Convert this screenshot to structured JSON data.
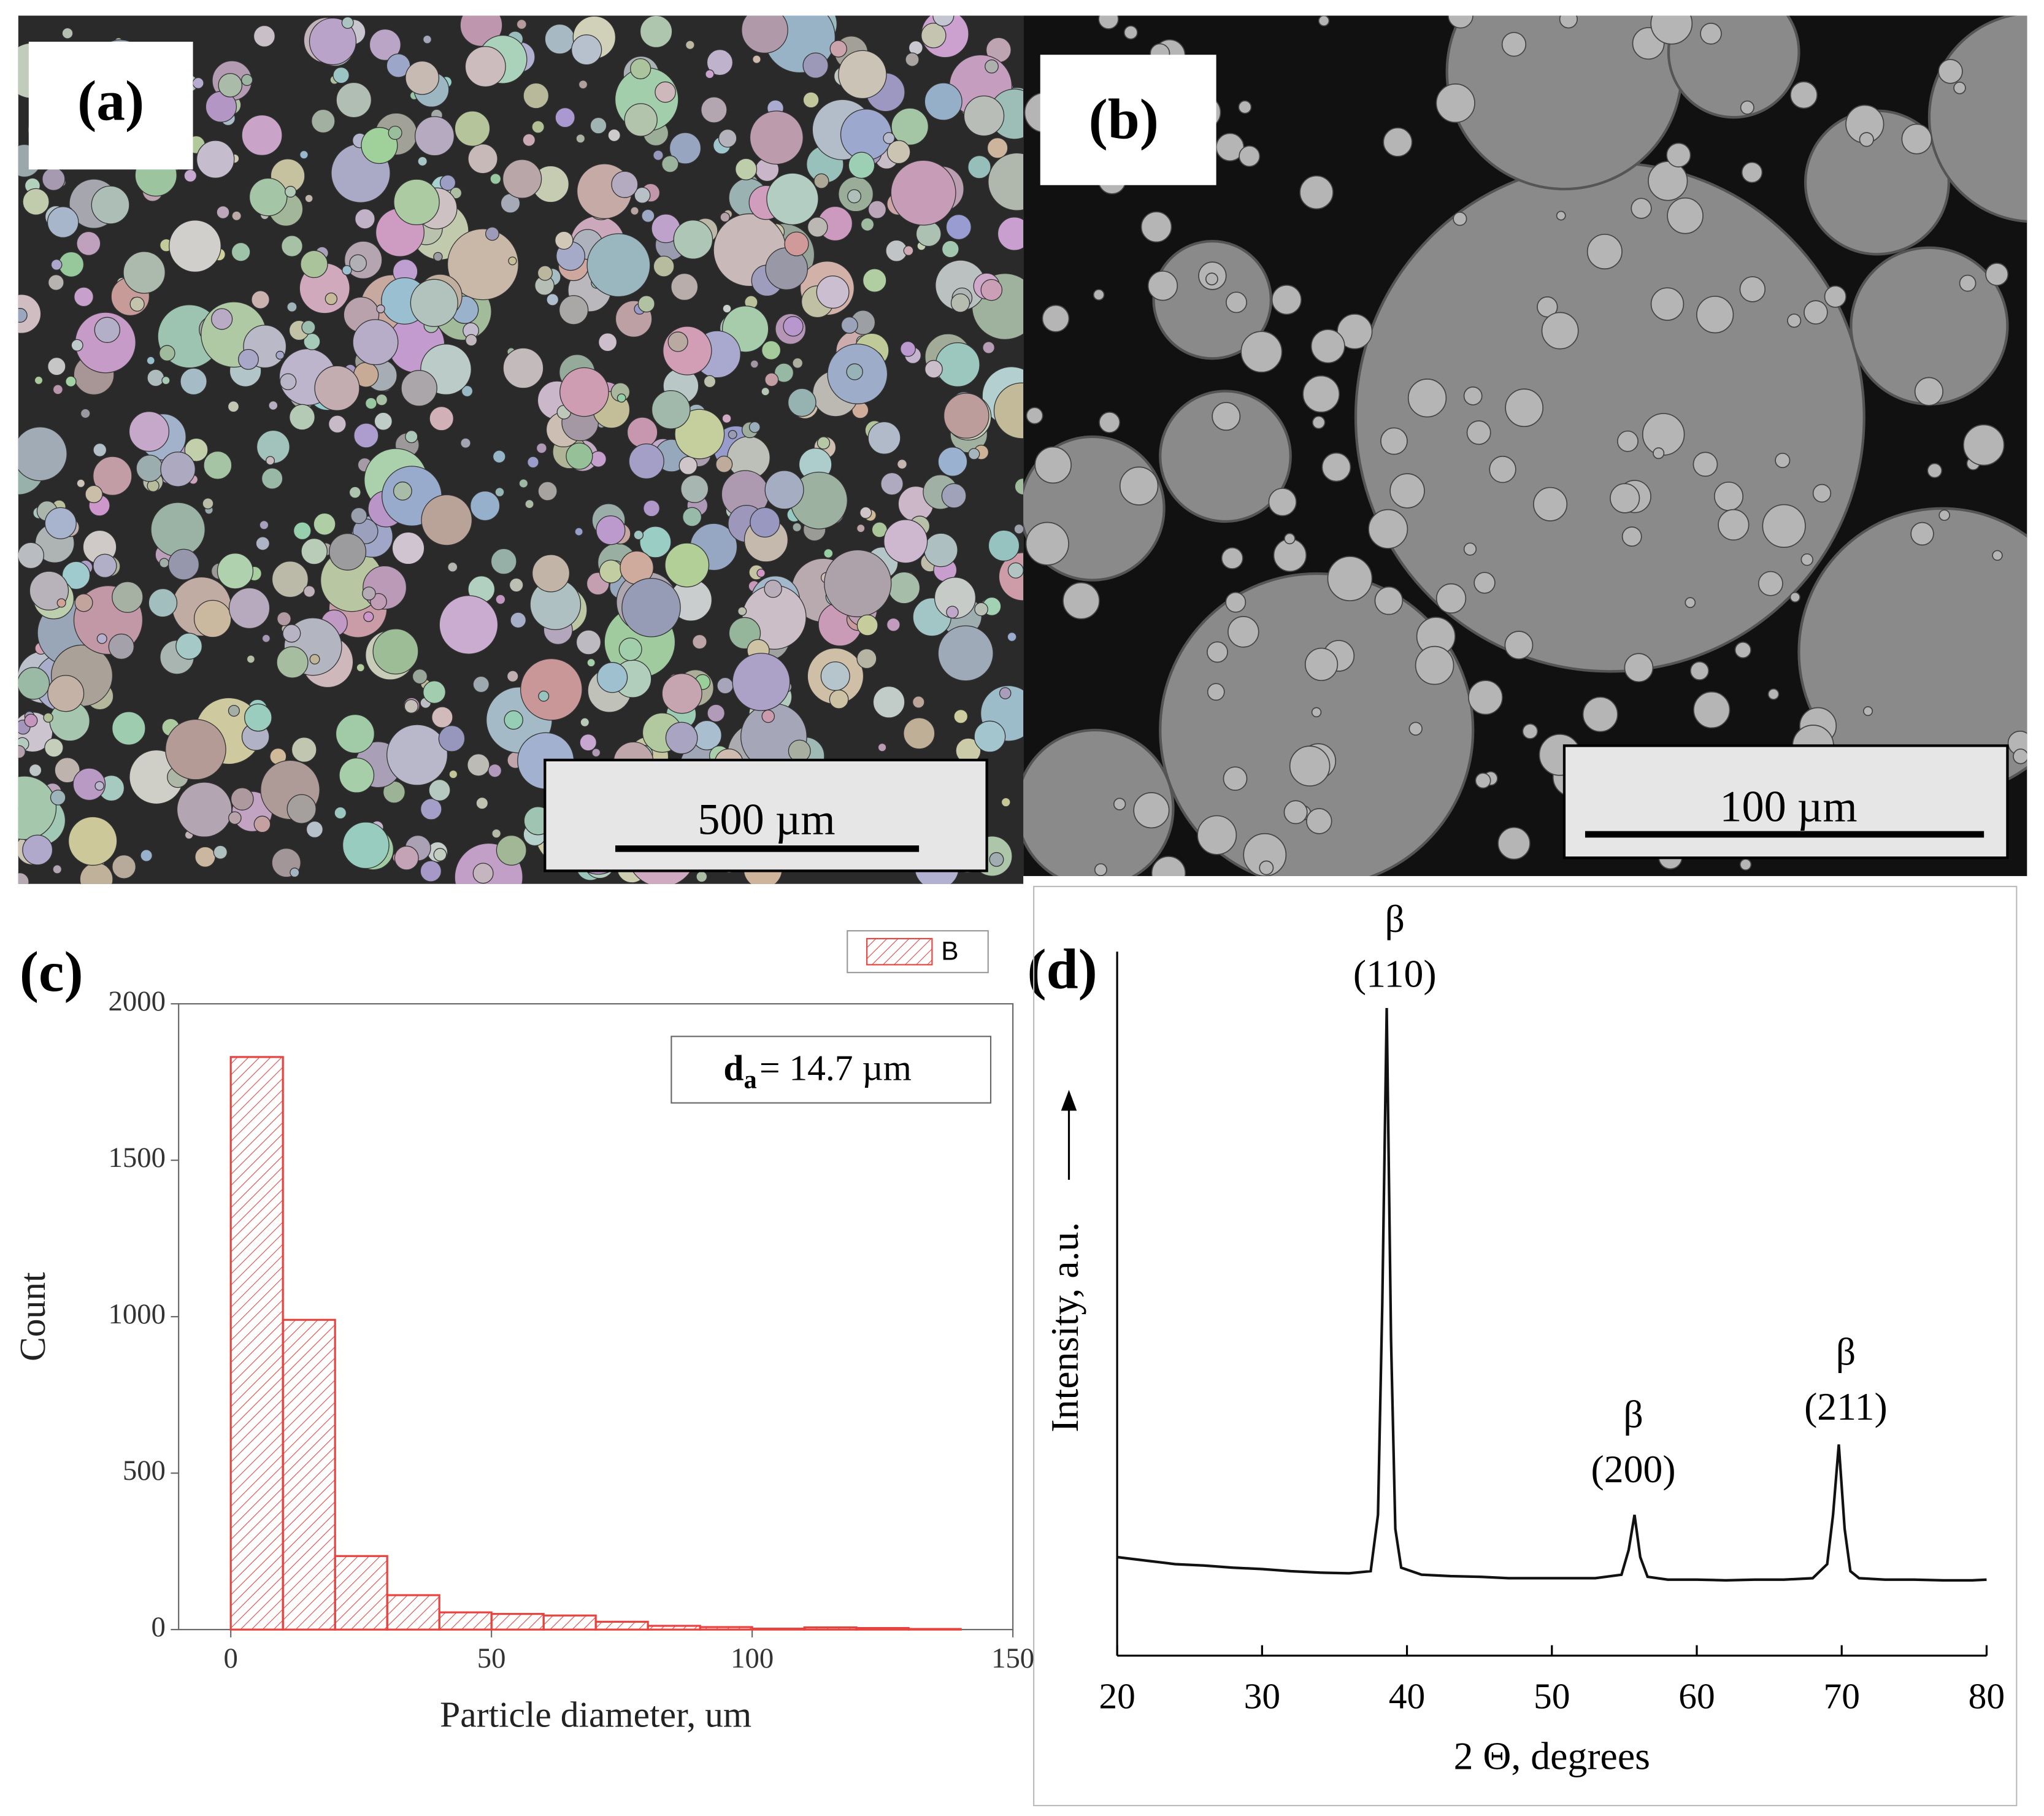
{
  "images": [
    {
      "label": "(a)",
      "scale_bar": "500 µm"
    },
    {
      "label": "(b)",
      "scale_bar": "100 µm"
    }
  ],
  "chart_data": [
    {
      "type": "histogram",
      "label": "(c)",
      "xlabel": "Particle diameter, um",
      "ylabel": "Count",
      "bins": [
        0,
        10,
        20,
        30,
        40,
        50,
        60,
        70,
        80,
        90,
        100,
        110,
        120,
        130,
        140
      ],
      "counts": [
        1830,
        990,
        235,
        110,
        55,
        50,
        45,
        25,
        12,
        8,
        3,
        7,
        5,
        2
      ],
      "series_name": "B",
      "color": "#e8423f",
      "annotation": {
        "symbol": "d",
        "subscript": "a",
        "text": "= 14.7 µm"
      },
      "xlim": [
        -10,
        150
      ],
      "xticks": [
        0,
        50,
        100,
        150
      ],
      "ylim": [
        0,
        2000
      ],
      "yticks": [
        0,
        500,
        1000,
        1500,
        2000
      ]
    },
    {
      "type": "line",
      "label": "(d)",
      "xlabel": "2 Θ, degrees",
      "ylabel": "Intensity, a.u.",
      "x": [
        20,
        22,
        24,
        26,
        28,
        30,
        32,
        34,
        36,
        37.5,
        38,
        38.3,
        38.6,
        38.9,
        39.2,
        39.6,
        41,
        43,
        45,
        47,
        49,
        51,
        53,
        54.8,
        55.3,
        55.7,
        56.1,
        56.6,
        58,
        60,
        62,
        64,
        66,
        68,
        69,
        69.4,
        69.8,
        70.2,
        70.6,
        71.2,
        73,
        75,
        77,
        79,
        80
      ],
      "y": [
        14,
        13.5,
        13,
        12.8,
        12.5,
        12.3,
        12,
        11.8,
        11.7,
        12,
        20,
        50,
        92,
        45,
        18,
        12.5,
        11.5,
        11.3,
        11.2,
        11,
        11,
        11,
        11,
        11.5,
        15,
        20,
        14,
        11.2,
        10.8,
        10.8,
        10.7,
        10.8,
        10.8,
        11,
        13,
        20,
        30,
        18,
        12,
        11,
        10.8,
        10.8,
        10.7,
        10.7,
        10.8
      ],
      "color": "#111111",
      "peaks": [
        {
          "phase": "β",
          "plane": "(110)"
        },
        {
          "phase": "β",
          "plane": "(200)"
        },
        {
          "phase": "β",
          "plane": "(211)"
        }
      ],
      "xlim": [
        20,
        80
      ],
      "xticks": [
        20,
        30,
        40,
        50,
        60,
        70,
        80
      ],
      "ylim": [
        0,
        100
      ]
    }
  ]
}
